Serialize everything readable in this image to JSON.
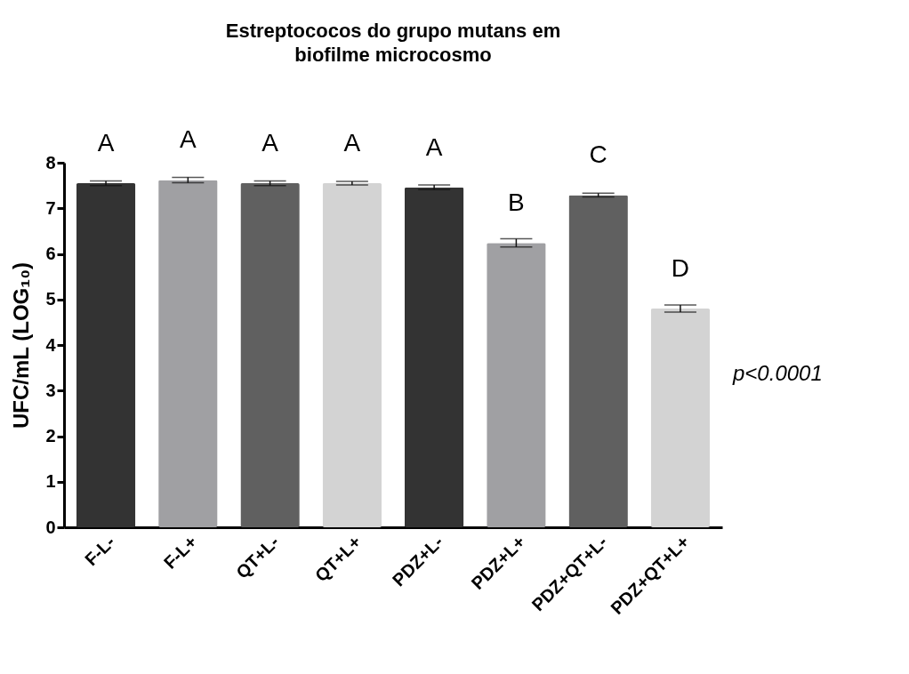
{
  "chart_data": {
    "type": "bar",
    "title": "Estreptococos do grupo mutans em\nbiofilme microcosmo",
    "ylabel": "UFC/mL (LOG₁₀)",
    "categories": [
      "F-L-",
      "F-L+",
      "QT+L-",
      "QT+L+",
      "PDZ+L-",
      "PDZ+L+",
      "PDZ+QT+L-",
      "PDZ+QT+L+"
    ],
    "values": [
      7.55,
      7.62,
      7.55,
      7.55,
      7.46,
      6.24,
      7.29,
      4.8
    ],
    "errors": [
      0.05,
      0.06,
      0.05,
      0.04,
      0.05,
      0.09,
      0.04,
      0.08
    ],
    "colors": [
      "#333333",
      "#a0a0a3",
      "#606060",
      "#d3d3d3",
      "#333333",
      "#a0a0a3",
      "#606060",
      "#d3d3d3"
    ],
    "ylim": [
      0,
      8
    ],
    "yticks": [
      0,
      1,
      2,
      3,
      4,
      5,
      6,
      7,
      8
    ],
    "grid": false,
    "annotations": [
      {
        "text": "A",
        "x": "F-L-",
        "y": 7.55
      },
      {
        "text": "A",
        "x": "F-L+",
        "y": 7.62
      },
      {
        "text": "A",
        "x": "QT+L-",
        "y": 7.55
      },
      {
        "text": "A",
        "x": "QT+L+",
        "y": 7.55
      },
      {
        "text": "A",
        "x": "PDZ+L-",
        "y": 7.46
      },
      {
        "text": "B",
        "x": "PDZ+L+",
        "y": 6.24
      },
      {
        "text": "C",
        "x": "PDZ+QT+L-",
        "y": 7.29
      },
      {
        "text": "D",
        "x": "PDZ+QT+L+",
        "y": 4.8
      },
      "p<0.0001"
    ]
  }
}
